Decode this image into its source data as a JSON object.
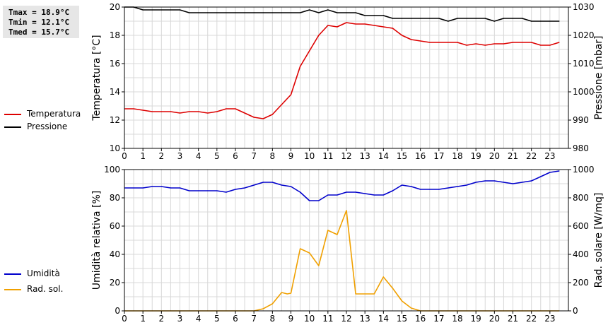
{
  "stats": {
    "tmax": "Tmax = 18.9°C",
    "tmin": "Tmin = 12.1°C",
    "tmed": "Tmed = 15.7°C"
  },
  "legend_top": [
    {
      "label": "Temperatura",
      "color": "#dd0000"
    },
    {
      "label": "Pressione",
      "color": "#000000"
    }
  ],
  "legend_bottom": [
    {
      "label": "Umidità",
      "color": "#0000cc"
    },
    {
      "label": "Rad. sol.",
      "color": "#f0a000"
    }
  ],
  "chart_data": [
    {
      "type": "line",
      "xlabel": "",
      "xlim": [
        0,
        24
      ],
      "x_ticks": [
        "0",
        "1",
        "2",
        "3",
        "4",
        "5",
        "6",
        "7",
        "8",
        "9",
        "10",
        "11",
        "12",
        "13",
        "14",
        "15",
        "16",
        "17",
        "18",
        "19",
        "20",
        "21",
        "22",
        "23"
      ],
      "grid": true,
      "y_left": {
        "label": "Temperatura [°C]",
        "lim": [
          10,
          20
        ],
        "ticks": [
          "10",
          "12",
          "14",
          "16",
          "18",
          "20"
        ]
      },
      "y_right": {
        "label": "Pressione [mbar]",
        "lim": [
          980,
          1030
        ],
        "ticks": [
          "980",
          "990",
          "1000",
          "1010",
          "1020",
          "1030"
        ]
      },
      "series": [
        {
          "name": "Temperatura",
          "axis": "left",
          "color": "#dd0000",
          "x": [
            0,
            0.5,
            1,
            1.5,
            2,
            2.5,
            3,
            3.5,
            4,
            4.5,
            5,
            5.5,
            6,
            6.5,
            7,
            7.5,
            8,
            8.5,
            9,
            9.5,
            10,
            10.5,
            11,
            11.5,
            12,
            12.5,
            13,
            13.5,
            14,
            14.5,
            15,
            15.5,
            16,
            16.5,
            17,
            17.5,
            18,
            18.5,
            19,
            19.5,
            20,
            20.5,
            21,
            21.5,
            22,
            22.5,
            23,
            23.5
          ],
          "values": [
            12.8,
            12.8,
            12.7,
            12.6,
            12.6,
            12.6,
            12.5,
            12.6,
            12.6,
            12.5,
            12.6,
            12.8,
            12.8,
            12.5,
            12.2,
            12.1,
            12.4,
            13.1,
            13.8,
            15.8,
            16.9,
            18.0,
            18.7,
            18.6,
            18.9,
            18.8,
            18.8,
            18.7,
            18.6,
            18.5,
            18.0,
            17.7,
            17.6,
            17.5,
            17.5,
            17.5,
            17.5,
            17.3,
            17.4,
            17.3,
            17.4,
            17.4,
            17.5,
            17.5,
            17.5,
            17.3,
            17.3,
            17.5
          ]
        },
        {
          "name": "Pressione",
          "axis": "right",
          "color": "#000000",
          "x": [
            0,
            0.5,
            1,
            1.5,
            2,
            2.5,
            3,
            3.5,
            4,
            4.5,
            5,
            5.5,
            6,
            6.5,
            7,
            7.5,
            8,
            8.5,
            9,
            9.5,
            10,
            10.5,
            11,
            11.5,
            12,
            12.5,
            13,
            13.5,
            14,
            14.5,
            15,
            15.5,
            16,
            16.5,
            17,
            17.5,
            18,
            18.5,
            19,
            19.5,
            20,
            20.5,
            21,
            21.5,
            22,
            22.5,
            23,
            23.5
          ],
          "values": [
            1030,
            1030,
            1029,
            1029,
            1029,
            1029,
            1029,
            1028,
            1028,
            1028,
            1028,
            1028,
            1028,
            1028,
            1028,
            1028,
            1028,
            1028,
            1028,
            1028,
            1029,
            1028,
            1029,
            1028,
            1028,
            1028,
            1027,
            1027,
            1027,
            1026,
            1026,
            1026,
            1026,
            1026,
            1026,
            1025,
            1026,
            1026,
            1026,
            1026,
            1025,
            1026,
            1026,
            1026,
            1025,
            1025,
            1025,
            1025
          ]
        }
      ]
    },
    {
      "type": "line",
      "xlabel": "",
      "xlim": [
        0,
        24
      ],
      "x_ticks": [
        "0",
        "1",
        "2",
        "3",
        "4",
        "5",
        "6",
        "7",
        "8",
        "9",
        "10",
        "11",
        "12",
        "13",
        "14",
        "15",
        "16",
        "17",
        "18",
        "19",
        "20",
        "21",
        "22",
        "23"
      ],
      "grid": true,
      "y_left": {
        "label": "Umidità relativa [%]",
        "lim": [
          0,
          100
        ],
        "ticks": [
          "0",
          "20",
          "40",
          "60",
          "80",
          "100"
        ]
      },
      "y_right": {
        "label": "Rad. solare [W/mq]",
        "lim": [
          0,
          1000
        ],
        "ticks": [
          "0",
          "200",
          "400",
          "600",
          "800",
          "1000"
        ]
      },
      "series": [
        {
          "name": "Umidità",
          "axis": "left",
          "color": "#0000cc",
          "x": [
            0,
            0.5,
            1,
            1.5,
            2,
            2.5,
            3,
            3.5,
            4,
            4.5,
            5,
            5.5,
            6,
            6.5,
            7,
            7.5,
            8,
            8.5,
            9,
            9.5,
            10,
            10.5,
            11,
            11.5,
            12,
            12.5,
            13,
            13.5,
            14,
            14.5,
            15,
            15.5,
            16,
            16.5,
            17,
            17.5,
            18,
            18.5,
            19,
            19.5,
            20,
            20.5,
            21,
            21.5,
            22,
            22.5,
            23,
            23.5
          ],
          "values": [
            87,
            87,
            87,
            88,
            88,
            87,
            87,
            85,
            85,
            85,
            85,
            84,
            86,
            87,
            89,
            91,
            91,
            89,
            88,
            84,
            78,
            78,
            82,
            82,
            84,
            84,
            83,
            82,
            82,
            85,
            89,
            88,
            86,
            86,
            86,
            87,
            88,
            89,
            91,
            92,
            92,
            91,
            90,
            91,
            92,
            95,
            98,
            99
          ]
        },
        {
          "name": "Rad. sol.",
          "axis": "right",
          "color": "#f0a000",
          "x": [
            0,
            0.5,
            1,
            1.5,
            2,
            2.5,
            3,
            3.5,
            4,
            4.5,
            5,
            5.5,
            6,
            6.5,
            7,
            7.5,
            8,
            8.5,
            8.8,
            9,
            9.5,
            10,
            10.5,
            11,
            11.5,
            12,
            12.5,
            13,
            13.5,
            14,
            14.5,
            15,
            15.5,
            16,
            16.5,
            17,
            17.5,
            18,
            18.5,
            19,
            19.5,
            20,
            20.5,
            21,
            21.5,
            22,
            22.5,
            23,
            23.5
          ],
          "values": [
            0,
            0,
            0,
            0,
            0,
            0,
            0,
            0,
            0,
            0,
            0,
            0,
            0,
            0,
            0,
            15,
            50,
            130,
            120,
            125,
            440,
            410,
            320,
            570,
            540,
            710,
            120,
            120,
            120,
            240,
            160,
            70,
            20,
            0,
            0,
            0,
            0,
            0,
            0,
            0,
            0,
            0,
            0,
            0,
            0,
            0,
            0,
            0,
            0
          ]
        }
      ]
    }
  ]
}
